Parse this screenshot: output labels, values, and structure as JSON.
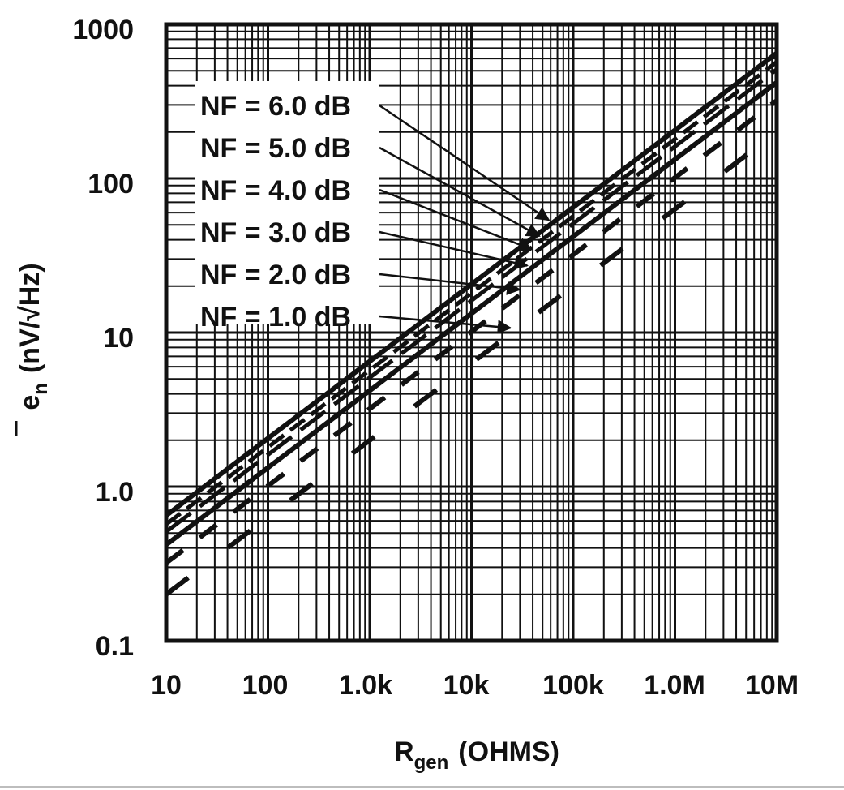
{
  "chart_data": {
    "type": "line",
    "title": "",
    "xlabel": "R",
    "xlabel_sub": "gen",
    "xlabel_unit": "(OHMS)",
    "ylabel": "e",
    "ylabel_sub": "n",
    "ylabel_unit": "(nV/√Hz)",
    "xscale": "log",
    "yscale": "log",
    "xlim": [
      10,
      10000000
    ],
    "ylim": [
      0.1,
      1000
    ],
    "grid": true,
    "x_tick_labels": [
      "10",
      "100",
      "1.0k",
      "10k",
      "100k",
      "1.0M",
      "10M"
    ],
    "y_tick_labels": [
      "0.1",
      "1.0",
      "10",
      "100",
      "1000"
    ],
    "series": [
      {
        "name": "NF = 6.0 dB",
        "x": [
          10,
          10000000
        ],
        "y": [
          0.65,
          650
        ]
      },
      {
        "name": "NF = 5.0 dB",
        "x": [
          10,
          10000000
        ],
        "y": [
          0.57,
          570
        ]
      },
      {
        "name": "NF = 4.0 dB",
        "x": [
          10,
          10000000
        ],
        "y": [
          0.51,
          510
        ]
      },
      {
        "name": "NF = 3.0 dB",
        "x": [
          10,
          10000000
        ],
        "y": [
          0.42,
          420
        ]
      },
      {
        "name": "NF = 2.0 dB",
        "x": [
          10,
          10000000
        ],
        "y": [
          0.32,
          320
        ]
      },
      {
        "name": "NF = 1.0 dB",
        "x": [
          10,
          10000000
        ],
        "y": [
          0.2,
          200
        ]
      }
    ],
    "legend_placement": "top-left inside, with arrows to curves near 100k"
  },
  "colors": {
    "ink": "#111111",
    "background": "#ffffff"
  }
}
